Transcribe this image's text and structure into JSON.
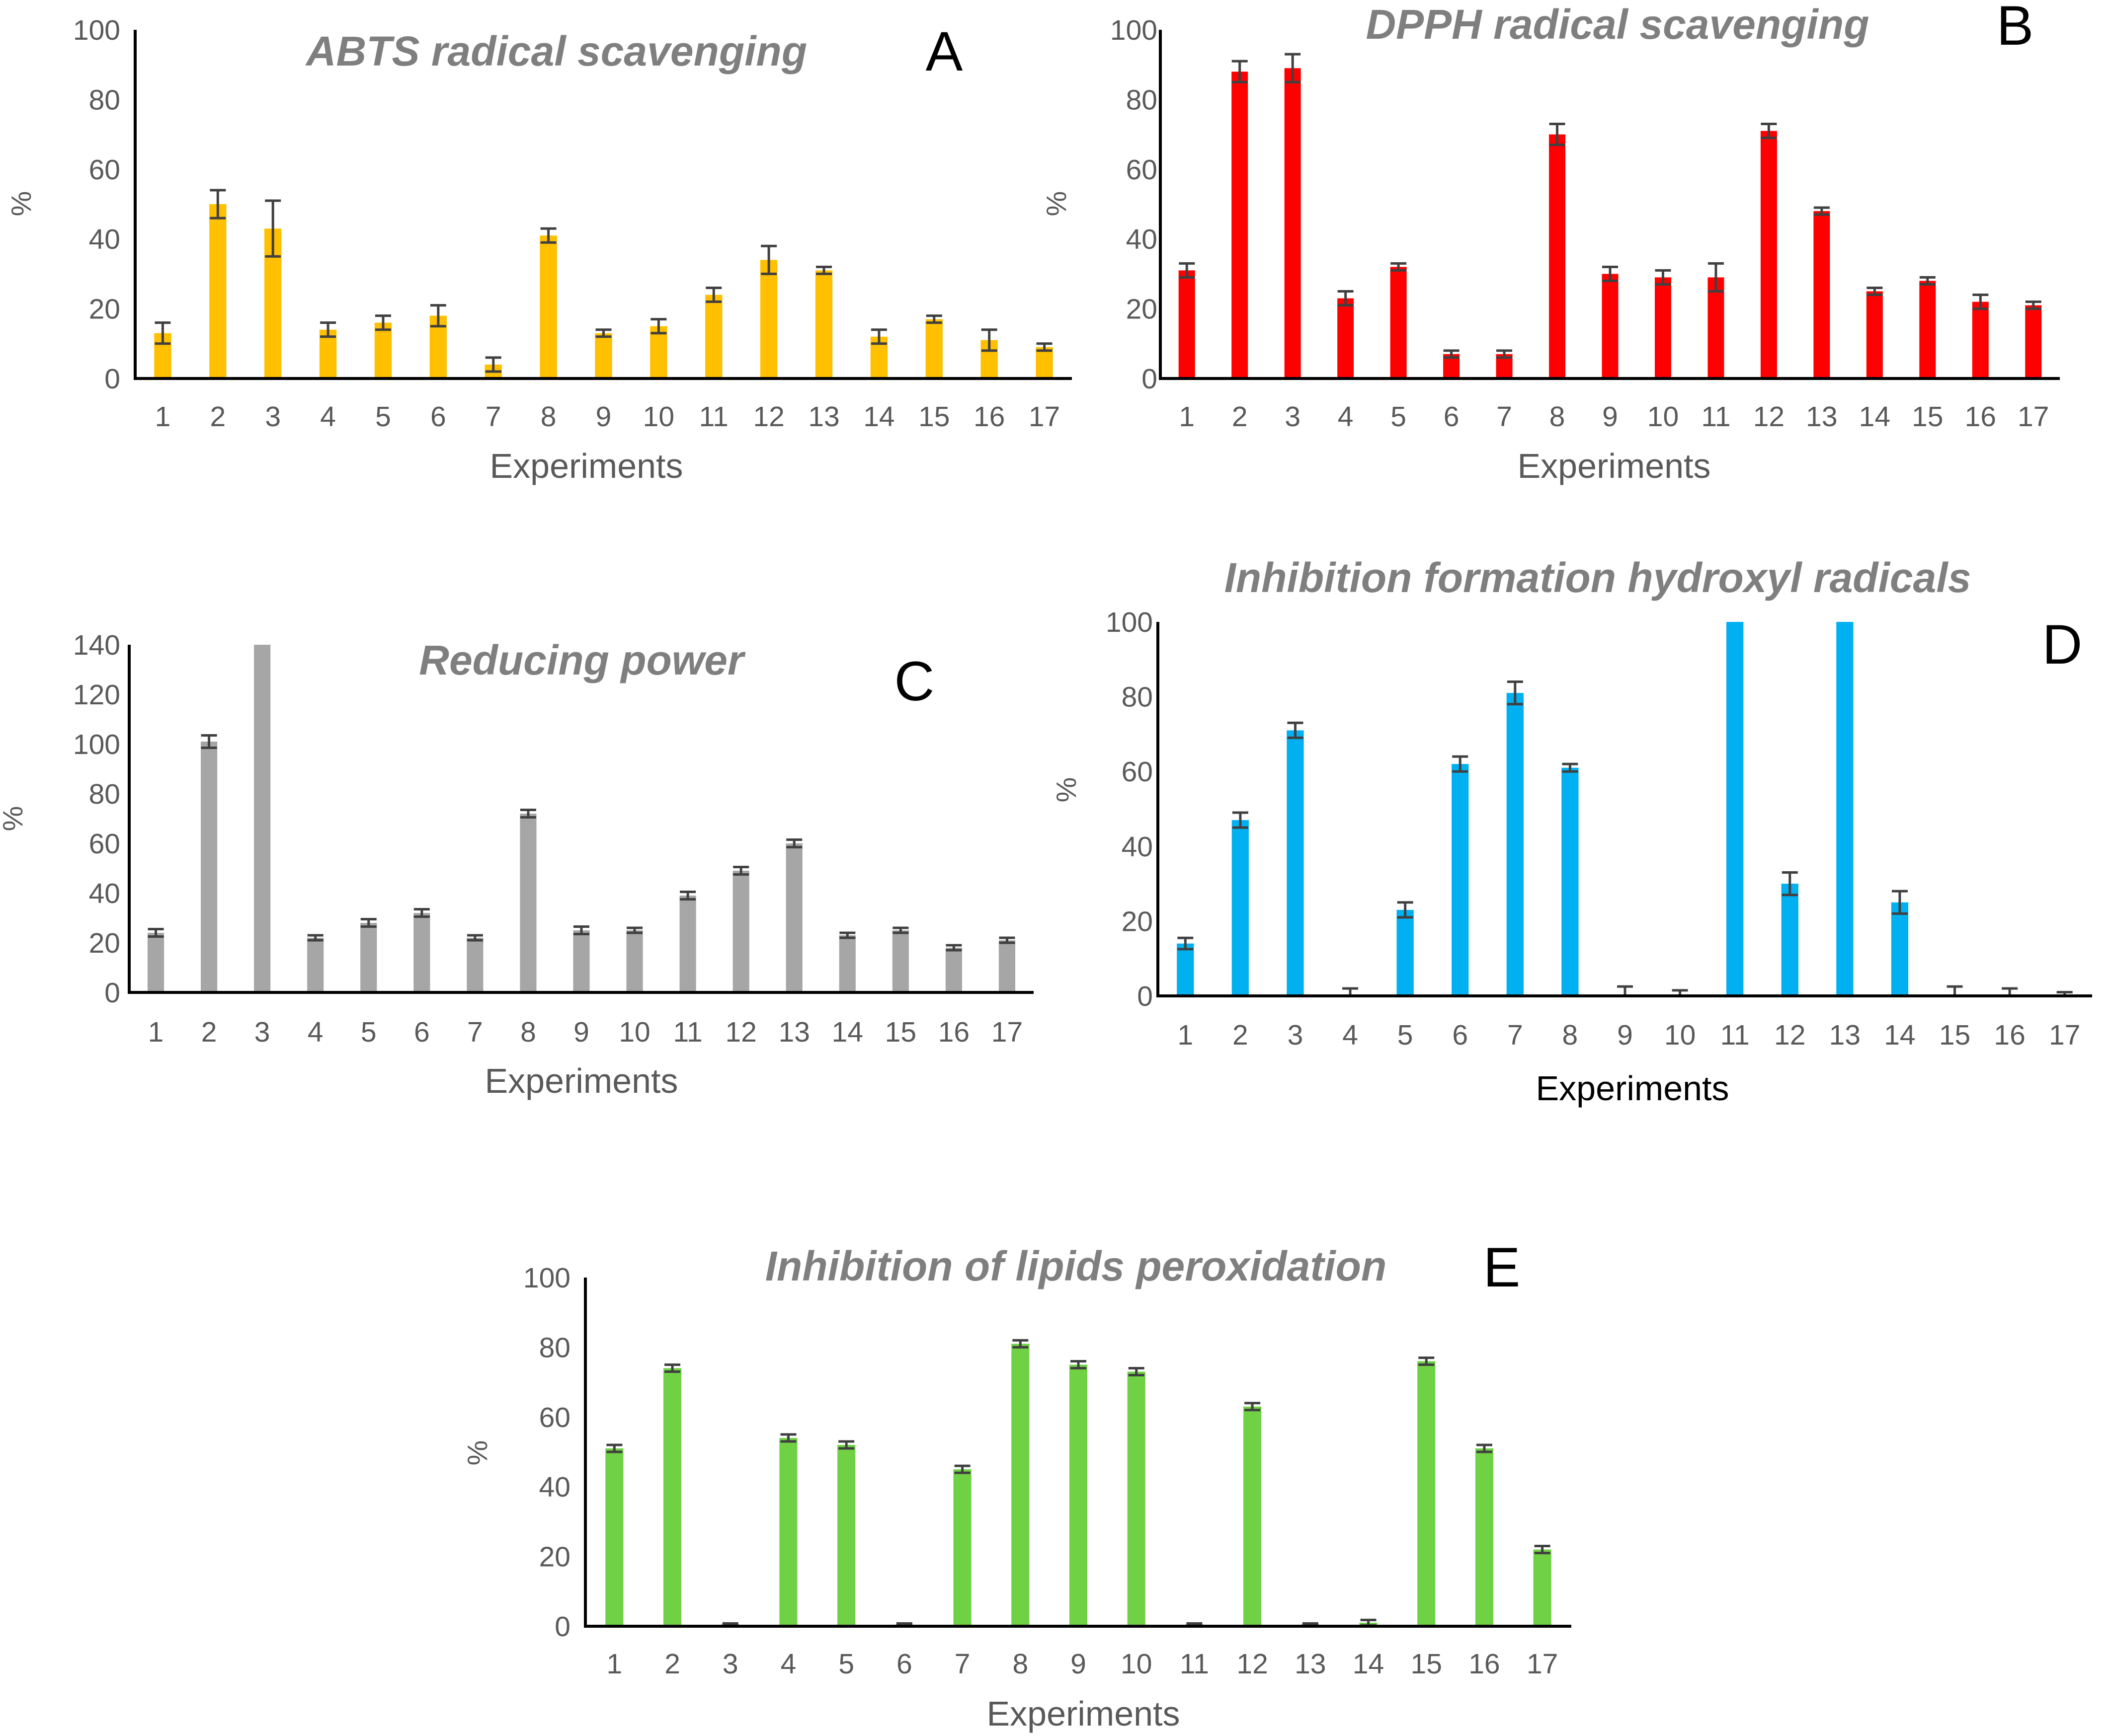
{
  "chart_data": [
    {
      "id": "A",
      "type": "bar",
      "panel_label": "A",
      "title": "ABTS radical scavenging",
      "xlabel": "Experiments",
      "ylabel": "%",
      "ylim": [
        0,
        100
      ],
      "yticks": [
        0,
        20,
        40,
        60,
        80,
        100
      ],
      "color": "#FFC000",
      "categories": [
        "1",
        "2",
        "3",
        "4",
        "5",
        "6",
        "7",
        "8",
        "9",
        "10",
        "11",
        "12",
        "13",
        "14",
        "15",
        "16",
        "17"
      ],
      "values": [
        13,
        50,
        43,
        14,
        16,
        18,
        4,
        41,
        13,
        15,
        24,
        34,
        31,
        12,
        17,
        11,
        9
      ],
      "errors": [
        3,
        4,
        8,
        2,
        2,
        3,
        2,
        2,
        1,
        2,
        2,
        4,
        1,
        2,
        1,
        3,
        1
      ]
    },
    {
      "id": "B",
      "type": "bar",
      "panel_label": "B",
      "title": "DPPH radical scavenging",
      "xlabel": "Experiments",
      "ylabel": "%",
      "ylim": [
        0,
        100
      ],
      "yticks": [
        0,
        20,
        40,
        60,
        80,
        100
      ],
      "color": "#FF0000",
      "categories": [
        "1",
        "2",
        "3",
        "4",
        "5",
        "6",
        "7",
        "8",
        "9",
        "10",
        "11",
        "12",
        "13",
        "14",
        "15",
        "16",
        "17"
      ],
      "values": [
        31,
        88,
        89,
        23,
        32,
        7,
        7,
        70,
        30,
        29,
        29,
        71,
        48,
        25,
        28,
        22,
        21
      ],
      "errors": [
        2,
        3,
        4,
        2,
        1,
        1,
        1,
        3,
        2,
        2,
        4,
        2,
        1,
        1,
        1,
        2,
        1
      ]
    },
    {
      "id": "C",
      "type": "bar",
      "panel_label": "C",
      "title": "Reducing power",
      "xlabel": "Experiments",
      "ylabel": "%",
      "ylim": [
        0,
        140
      ],
      "yticks": [
        0,
        20,
        40,
        60,
        80,
        100,
        120,
        140
      ],
      "color": "#A6A6A6",
      "categories": [
        "1",
        "2",
        "3",
        "4",
        "5",
        "6",
        "7",
        "8",
        "9",
        "10",
        "11",
        "12",
        "13",
        "14",
        "15",
        "16",
        "17"
      ],
      "values": [
        24,
        101,
        140,
        22,
        28,
        32,
        22,
        72,
        25,
        25,
        39,
        49,
        60,
        23,
        25,
        18,
        21
      ],
      "errors": [
        1.5,
        2.5,
        0,
        1,
        1.5,
        1.5,
        1,
        1.5,
        1.5,
        1,
        1.5,
        1.5,
        1.5,
        1,
        1,
        1,
        1
      ]
    },
    {
      "id": "D",
      "type": "bar",
      "panel_label": "D",
      "title": "Inhibition formation hydroxyl radicals",
      "xlabel": "Experiments",
      "ylabel": "%",
      "ylim": [
        0,
        100
      ],
      "yticks": [
        0,
        20,
        40,
        60,
        80,
        100
      ],
      "color": "#00B0F0",
      "categories": [
        "1",
        "2",
        "3",
        "4",
        "5",
        "6",
        "7",
        "8",
        "9",
        "10",
        "11",
        "12",
        "13",
        "14",
        "15",
        "16",
        "17"
      ],
      "values": [
        14,
        47,
        71,
        0,
        23,
        62,
        81,
        61,
        0,
        0,
        100,
        30,
        100,
        25,
        0,
        0,
        0
      ],
      "errors": [
        1.5,
        2,
        2,
        2,
        2,
        2,
        3,
        1,
        2.5,
        1.5,
        0,
        3,
        0,
        3,
        2.5,
        2,
        1
      ]
    },
    {
      "id": "E",
      "type": "bar",
      "panel_label": "E",
      "title": "Inhibition of lipids peroxidation",
      "xlabel": "Experiments",
      "ylabel": "%",
      "ylim": [
        0,
        100
      ],
      "yticks": [
        0,
        20,
        40,
        60,
        80,
        100
      ],
      "color": "#70D145",
      "categories": [
        "1",
        "2",
        "3",
        "4",
        "5",
        "6",
        "7",
        "8",
        "9",
        "10",
        "11",
        "12",
        "13",
        "14",
        "15",
        "16",
        "17"
      ],
      "values": [
        51,
        74,
        0.5,
        54,
        52,
        0.5,
        45,
        81,
        75,
        73,
        0.5,
        63,
        0.5,
        1,
        76,
        51,
        22
      ],
      "errors": [
        1,
        1,
        0.3,
        1,
        1,
        0.3,
        1,
        1,
        1,
        1,
        0.3,
        1,
        0.3,
        0.8,
        1,
        1,
        1
      ]
    }
  ]
}
